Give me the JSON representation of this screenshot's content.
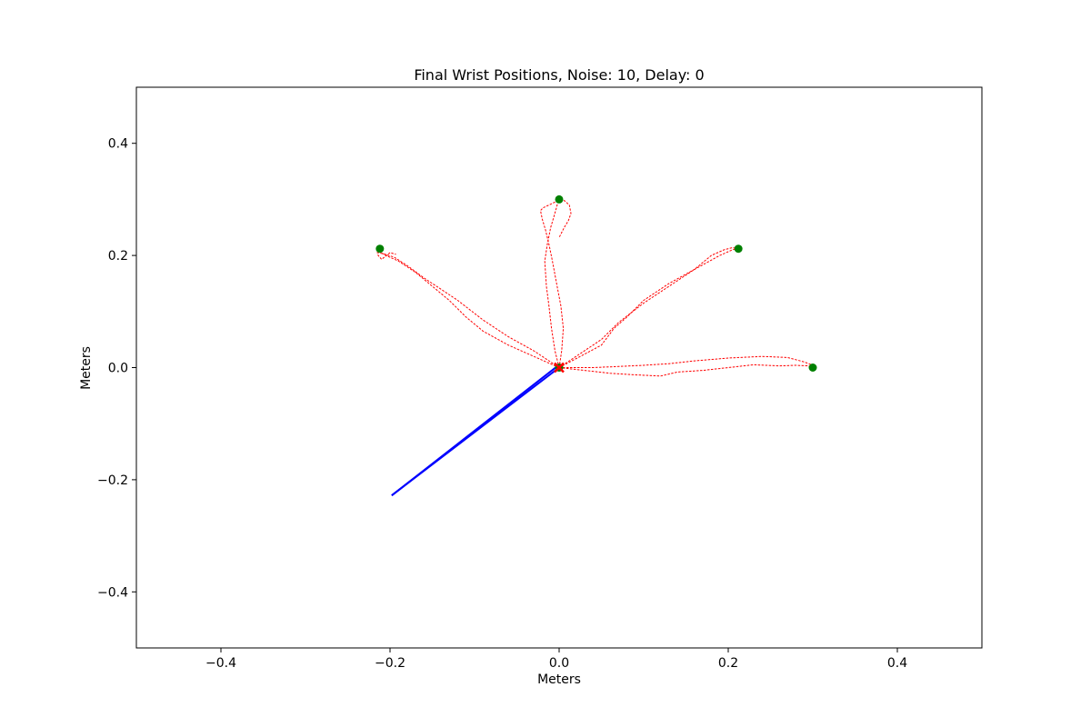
{
  "chart_data": {
    "type": "scatter",
    "title": "Final Wrist Positions, Noise: 10, Delay: 0",
    "xlabel": "Meters",
    "ylabel": "Meters",
    "xlim": [
      -0.5,
      0.5
    ],
    "ylim": [
      -0.5,
      0.5
    ],
    "xticks": [
      -0.4,
      -0.2,
      0.0,
      0.2,
      0.4
    ],
    "xtick_labels": [
      "−0.4",
      "−0.2",
      "0.0",
      "0.2",
      "0.4"
    ],
    "yticks": [
      -0.4,
      -0.2,
      0.0,
      0.2,
      0.4
    ],
    "ytick_labels": [
      "−0.4",
      "−0.2",
      "0.0",
      "0.2",
      "0.4"
    ],
    "grid": false,
    "colors": {
      "targets": "#008000",
      "trajectories": "#ff0000",
      "arm": "#0000ff",
      "end_marker": "#ff0000"
    },
    "targets": [
      {
        "x": 0.0,
        "y": 0.3
      },
      {
        "x": -0.212,
        "y": 0.212
      },
      {
        "x": 0.212,
        "y": 0.212
      },
      {
        "x": 0.3,
        "y": 0.0
      },
      {
        "x": 0.0,
        "y": 0.0
      }
    ],
    "arm_segments": [
      {
        "x": [
          0.0,
          -0.198
        ],
        "y": [
          0.0,
          -0.228
        ]
      },
      {
        "x": [
          -0.198,
          0.0
        ],
        "y": [
          -0.228,
          0.005
        ]
      }
    ],
    "end_marker": {
      "x": 0.0,
      "y": 0.0
    },
    "trajectories": [
      {
        "x": [
          0.0,
          0.003,
          0.005,
          0.002,
          -0.003,
          -0.008,
          -0.012,
          -0.016,
          -0.02,
          -0.022,
          -0.019,
          -0.012,
          -0.004,
          0.006,
          0.012,
          0.014,
          0.011,
          0.006,
          0.0
        ],
        "y": [
          0.0,
          0.03,
          0.07,
          0.11,
          0.15,
          0.19,
          0.22,
          0.245,
          0.265,
          0.28,
          0.285,
          0.29,
          0.296,
          0.298,
          0.29,
          0.275,
          0.262,
          0.25,
          0.232
        ]
      },
      {
        "x": [
          0.0,
          -0.005,
          -0.009,
          -0.012,
          -0.015,
          -0.017,
          -0.014,
          -0.01,
          -0.006,
          -0.003,
          -0.001
        ],
        "y": [
          0.0,
          0.03,
          0.07,
          0.11,
          0.145,
          0.19,
          0.22,
          0.25,
          0.27,
          0.286,
          0.298
        ]
      },
      {
        "x": [
          0.0,
          -0.03,
          -0.06,
          -0.09,
          -0.12,
          -0.14,
          -0.16,
          -0.178,
          -0.195,
          -0.208,
          -0.215,
          -0.214,
          -0.21,
          -0.2,
          -0.193
        ],
        "y": [
          0.0,
          0.03,
          0.055,
          0.085,
          0.12,
          0.14,
          0.16,
          0.18,
          0.197,
          0.203,
          0.205,
          0.2,
          0.193,
          0.205,
          0.202
        ]
      },
      {
        "x": [
          0.0,
          -0.03,
          -0.06,
          -0.09,
          -0.11,
          -0.13,
          -0.15,
          -0.17,
          -0.19,
          -0.205,
          -0.213
        ],
        "y": [
          0.0,
          0.02,
          0.04,
          0.065,
          0.09,
          0.12,
          0.145,
          0.17,
          0.19,
          0.2,
          0.207
        ]
      },
      {
        "x": [
          0.0,
          0.02,
          0.05,
          0.07,
          0.1,
          0.13,
          0.16,
          0.19,
          0.205,
          0.21
        ],
        "y": [
          0.0,
          0.02,
          0.05,
          0.08,
          0.115,
          0.145,
          0.175,
          0.2,
          0.21,
          0.212
        ]
      },
      {
        "x": [
          0.0,
          0.025,
          0.05,
          0.065,
          0.08,
          0.1,
          0.13,
          0.16,
          0.18,
          0.195,
          0.205,
          0.212
        ],
        "y": [
          0.0,
          0.02,
          0.04,
          0.07,
          0.09,
          0.12,
          0.15,
          0.175,
          0.2,
          0.21,
          0.214,
          0.212
        ]
      },
      {
        "x": [
          0.0,
          0.04,
          0.07,
          0.1,
          0.13,
          0.16,
          0.2,
          0.24,
          0.27,
          0.29,
          0.3
        ],
        "y": [
          0.0,
          0.0,
          0.002,
          0.004,
          0.007,
          0.012,
          0.017,
          0.02,
          0.018,
          0.01,
          0.004
        ]
      },
      {
        "x": [
          0.0,
          0.03,
          0.06,
          0.09,
          0.12,
          0.14,
          0.17,
          0.2,
          0.23,
          0.26,
          0.28,
          0.295,
          0.3
        ],
        "y": [
          0.0,
          -0.005,
          -0.01,
          -0.013,
          -0.015,
          -0.008,
          -0.005,
          0.0,
          0.005,
          0.003,
          0.004,
          0.003,
          0.0
        ]
      }
    ]
  }
}
